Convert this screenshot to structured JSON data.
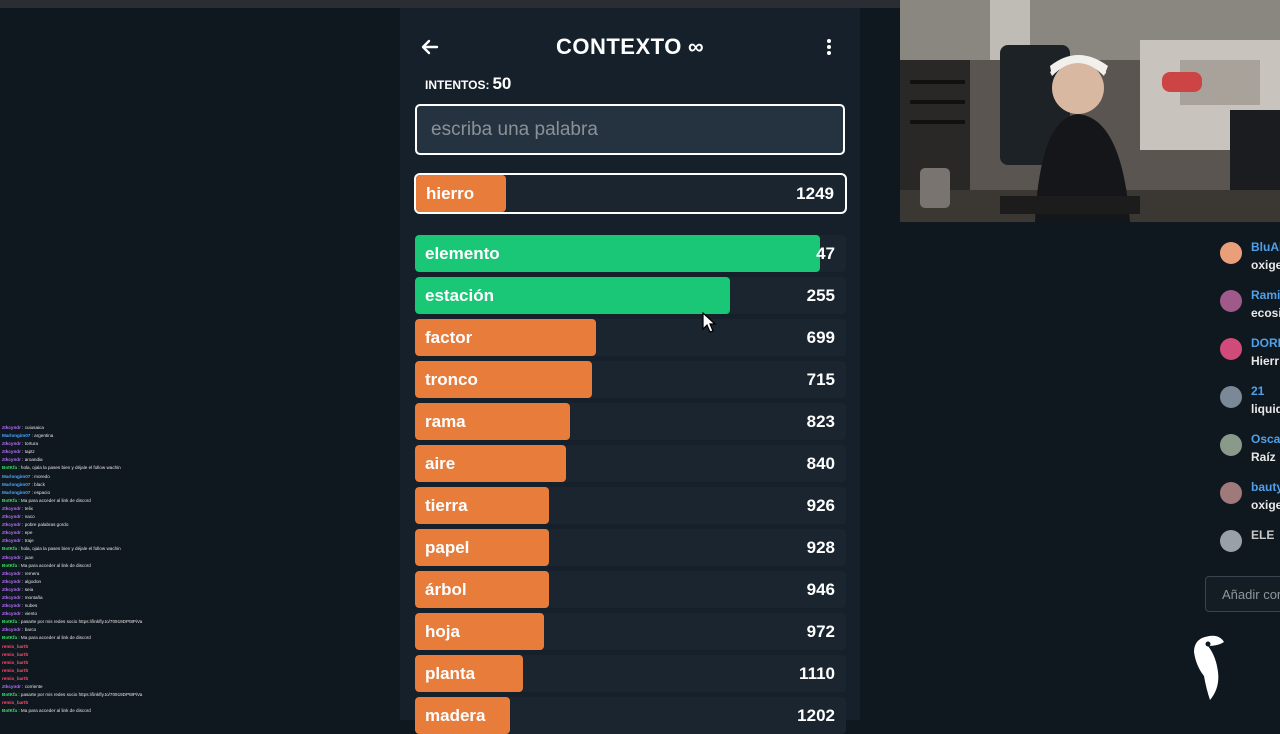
{
  "game": {
    "back_icon": "arrow-left-icon",
    "title": "CONTEXTO",
    "infinity_symbol": "∞",
    "menu_icon": "vertical-ellipsis-icon",
    "attempts_label": "INTENTOS:",
    "attempts_value": "50",
    "input_placeholder": "escriba una palabra",
    "input_value": "",
    "current_guess": {
      "word": "hierro",
      "score": "1249",
      "fill_fraction": 0.21,
      "color": "#e87c3b"
    },
    "guesses": [
      {
        "word": "elemento",
        "score": "47",
        "fill_fraction": 0.94,
        "color": "#19c777"
      },
      {
        "word": "estación",
        "score": "255",
        "fill_fraction": 0.73,
        "color": "#19c777"
      },
      {
        "word": "factor",
        "score": "699",
        "fill_fraction": 0.42,
        "color": "#e87c3b"
      },
      {
        "word": "tronco",
        "score": "715",
        "fill_fraction": 0.41,
        "color": "#e87c3b"
      },
      {
        "word": "rama",
        "score": "823",
        "fill_fraction": 0.36,
        "color": "#e87c3b"
      },
      {
        "word": "aire",
        "score": "840",
        "fill_fraction": 0.35,
        "color": "#e87c3b"
      },
      {
        "word": "tierra",
        "score": "926",
        "fill_fraction": 0.31,
        "color": "#e87c3b"
      },
      {
        "word": "papel",
        "score": "928",
        "fill_fraction": 0.31,
        "color": "#e87c3b"
      },
      {
        "word": "árbol",
        "score": "946",
        "fill_fraction": 0.31,
        "color": "#e87c3b"
      },
      {
        "word": "hoja",
        "score": "972",
        "fill_fraction": 0.3,
        "color": "#e87c3b"
      },
      {
        "word": "planta",
        "score": "1110",
        "fill_fraction": 0.25,
        "color": "#e87c3b"
      },
      {
        "word": "madera",
        "score": "1202",
        "fill_fraction": 0.22,
        "color": "#e87c3b"
      }
    ]
  },
  "right_chat": {
    "messages": [
      {
        "name": "BluAl",
        "text": "oxige",
        "avatar_color": "#e9a07a"
      },
      {
        "name": "Ramir",
        "text": "ecosi",
        "avatar_color": "#a05a8a"
      },
      {
        "name": "DORI",
        "text": "Hierr",
        "avatar_color": "#d04a7a"
      },
      {
        "name": "21",
        "text": "liquid",
        "avatar_color": "#7a8898"
      },
      {
        "name": "Osca",
        "text": "Raíz",
        "avatar_color": "#8a9a8a"
      },
      {
        "name": "bauty",
        "text": "oxige",
        "avatar_color": "#a07a7a"
      },
      {
        "name": "ELE",
        "text": "",
        "avatar_color": "#9aa0a8"
      }
    ],
    "add_comment_placeholder": "Añadir cor"
  },
  "left_chat": {
    "lines": [
      {
        "user": "ztkcyndr",
        "text": ": cuiusaica",
        "color": "#b86cff"
      },
      {
        "user": "Marlongim07",
        "text": ": argentina",
        "color": "#4aa8ff"
      },
      {
        "user": "ztkcyndr",
        "text": ": tortura",
        "color": "#b86cff"
      },
      {
        "user": "ztkcyndr",
        "text": ": taptz",
        "color": "#b86cff"
      },
      {
        "user": "ztkcyndr",
        "text": ": aroandia",
        "color": "#b86cff"
      },
      {
        "user": "BotKfa",
        "text": ": hola, ojala la pases bien y déjale el follow wachin",
        "color": "#3de06a"
      },
      {
        "user": "Marlongim07",
        "text": ": moredo",
        "color": "#4aa8ff"
      },
      {
        "user": "Marlongim07",
        "text": ": black",
        "color": "#4aa8ff"
      },
      {
        "user": "Marlongim07",
        "text": ": espacio",
        "color": "#4aa8ff"
      },
      {
        "user": "BotKfa",
        "text": ": Ma para acceder al link de discord",
        "color": "#3de06a"
      },
      {
        "user": "ztkcyndr",
        "text": ": telix",
        "color": "#b86cff"
      },
      {
        "user": "ztkcyndr",
        "text": ": naco",
        "color": "#b86cff"
      },
      {
        "user": "ztkcyndr",
        "text": ": pobre palabras gordo",
        "color": "#b86cff"
      },
      {
        "user": "ztkcyndr",
        "text": ": epe",
        "color": "#b86cff"
      },
      {
        "user": "ztkcyndr",
        "text": ": traje",
        "color": "#b86cff"
      },
      {
        "user": "BotKfa",
        "text": ": hola, ojala la pases bien y déjale el follow wachin",
        "color": "#3de06a"
      },
      {
        "user": "ztkcyndr",
        "text": ": juan",
        "color": "#b86cff"
      },
      {
        "user": "BotKfa",
        "text": ": Ma para acceder al link de discord",
        "color": "#3de06a"
      },
      {
        "user": "ztkcyndr",
        "text": ": remera",
        "color": "#b86cff"
      },
      {
        "user": "ztkcyndr",
        "text": ": algodon",
        "color": "#b86cff"
      },
      {
        "user": "ztkcyndr",
        "text": ": seia",
        "color": "#b86cff"
      },
      {
        "user": "ztkcyndr",
        "text": ": montaña",
        "color": "#b86cff"
      },
      {
        "user": "ztkcyndr",
        "text": ": nubes",
        "color": "#b86cff"
      },
      {
        "user": "ztkcyndr",
        "text": ": viento",
        "color": "#b86cff"
      },
      {
        "user": "BotKfa",
        "text": ": pasarte por mis redes socio https://linkfly.to/70919DPt8PiVa",
        "color": "#3de06a"
      },
      {
        "user": "ztkcyndr",
        "text": ": barco",
        "color": "#b86cff"
      },
      {
        "user": "BotKfa",
        "text": ": Ma para acceder al link de discord",
        "color": "#3de06a"
      },
      {
        "user": "remix_barth",
        "text": "",
        "color": "#ff4a6a"
      },
      {
        "user": "remix_barth",
        "text": "",
        "color": "#ff4a6a"
      },
      {
        "user": "remix_barth",
        "text": "",
        "color": "#ff4a6a"
      },
      {
        "user": "remix_barth",
        "text": "",
        "color": "#ff4a6a"
      },
      {
        "user": "remix_barth",
        "text": "",
        "color": "#ff4a6a"
      },
      {
        "user": "ztkcyndr",
        "text": ": corriente",
        "color": "#b86cff"
      },
      {
        "user": "BotKfa",
        "text": ": pasarte por mis redes socio https://linkfly.to/70919DPt8PiVa",
        "color": "#3de06a"
      },
      {
        "user": "remix_barth",
        "text": "",
        "color": "#ff4a6a"
      },
      {
        "user": "BotKfa",
        "text": ": Ma para acceder al link de discord",
        "color": "#3de06a"
      }
    ]
  }
}
